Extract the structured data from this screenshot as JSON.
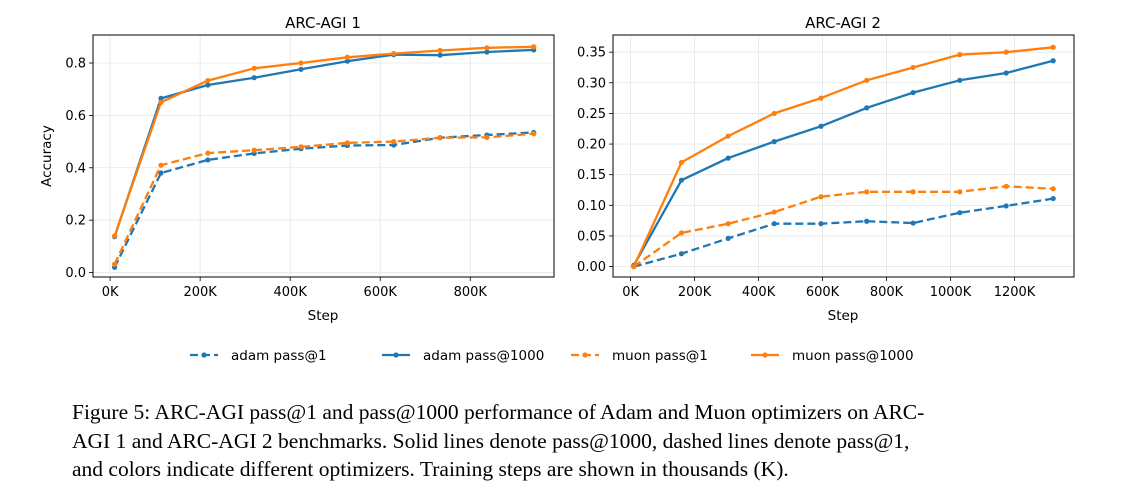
{
  "chart_data": [
    {
      "type": "line",
      "title": "ARC-AGI 1",
      "xlabel": "Step",
      "ylabel": "Accuracy",
      "xlim": [
        -38,
        986
      ],
      "ylim": [
        -0.017,
        0.907
      ],
      "grid": true,
      "xticks": [
        0,
        200,
        400,
        600,
        800
      ],
      "xtick_labels": [
        "0K",
        "200K",
        "400K",
        "600K",
        "800K"
      ],
      "yticks": [
        0,
        0.2,
        0.4,
        0.6,
        0.8
      ],
      "ytick_labels": [
        "0.0",
        "0.2",
        "0.4",
        "0.6",
        "0.8"
      ],
      "x": [
        10,
        113,
        217,
        320,
        424,
        527,
        630,
        733,
        837,
        941
      ],
      "series": [
        {
          "name": "adam pass@1",
          "color": "#1f77b4",
          "dashed": true,
          "values": [
            0.02,
            0.38,
            0.43,
            0.455,
            0.473,
            0.485,
            0.487,
            0.515,
            0.525,
            0.535
          ]
        },
        {
          "name": "adam pass@1000",
          "color": "#1f77b4",
          "dashed": false,
          "values": [
            0.137,
            0.665,
            0.716,
            0.744,
            0.776,
            0.807,
            0.832,
            0.83,
            0.842,
            0.85
          ]
        },
        {
          "name": "muon pass@1",
          "color": "#ff7f0e",
          "dashed": true,
          "values": [
            0.032,
            0.41,
            0.456,
            0.467,
            0.48,
            0.495,
            0.5,
            0.515,
            0.516,
            0.53
          ]
        },
        {
          "name": "muon pass@1000",
          "color": "#ff7f0e",
          "dashed": false,
          "values": [
            0.14,
            0.65,
            0.733,
            0.78,
            0.8,
            0.822,
            0.836,
            0.848,
            0.858,
            0.862
          ]
        }
      ]
    },
    {
      "type": "line",
      "title": "ARC-AGI 2",
      "xlabel": "Step",
      "ylabel": "",
      "xlim": [
        -55,
        1386
      ],
      "ylim": [
        -0.017,
        0.378
      ],
      "grid": true,
      "xticks": [
        0,
        200,
        400,
        600,
        800,
        1000,
        1200
      ],
      "xtick_labels": [
        "0K",
        "200K",
        "400K",
        "600K",
        "800K",
        "1000K",
        "1200K"
      ],
      "yticks": [
        0,
        0.05,
        0.1,
        0.15,
        0.2,
        0.25,
        0.3,
        0.35
      ],
      "ytick_labels": [
        "0.00",
        "0.05",
        "0.10",
        "0.15",
        "0.20",
        "0.25",
        "0.30",
        "0.35"
      ],
      "x": [
        10,
        159,
        305,
        449,
        595,
        738,
        883,
        1029,
        1174,
        1321
      ],
      "series": [
        {
          "name": "adam pass@1",
          "color": "#1f77b4",
          "dashed": true,
          "values": [
            0.0,
            0.021,
            0.046,
            0.07,
            0.07,
            0.074,
            0.071,
            0.088,
            0.099,
            0.111
          ]
        },
        {
          "name": "adam pass@1000",
          "color": "#1f77b4",
          "dashed": false,
          "values": [
            0.002,
            0.141,
            0.177,
            0.204,
            0.229,
            0.259,
            0.284,
            0.304,
            0.316,
            0.336
          ]
        },
        {
          "name": "muon pass@1",
          "color": "#ff7f0e",
          "dashed": true,
          "values": [
            0.0,
            0.055,
            0.07,
            0.089,
            0.114,
            0.122,
            0.122,
            0.122,
            0.131,
            0.127
          ]
        },
        {
          "name": "muon pass@1000",
          "color": "#ff7f0e",
          "dashed": false,
          "values": [
            0.0,
            0.17,
            0.213,
            0.25,
            0.275,
            0.304,
            0.325,
            0.346,
            0.35,
            0.358
          ]
        }
      ]
    }
  ],
  "legend": {
    "placement": "bottom-center",
    "entries": [
      {
        "label": "adam pass@1",
        "color": "#1f77b4",
        "dashed": true
      },
      {
        "label": "adam pass@1000",
        "color": "#1f77b4",
        "dashed": false
      },
      {
        "label": "muon pass@1",
        "color": "#ff7f0e",
        "dashed": true
      },
      {
        "label": "muon pass@1000",
        "color": "#ff7f0e",
        "dashed": false
      }
    ]
  },
  "caption": {
    "lines": [
      "Figure 5: ARC-AGI pass@1 and pass@1000 performance of Adam and Muon optimizers on ARC-",
      "AGI 1 and ARC-AGI 2 benchmarks. Solid lines denote pass@1000, dashed lines denote pass@1,",
      "and colors indicate different optimizers. Training steps are shown in thousands (K)."
    ]
  }
}
